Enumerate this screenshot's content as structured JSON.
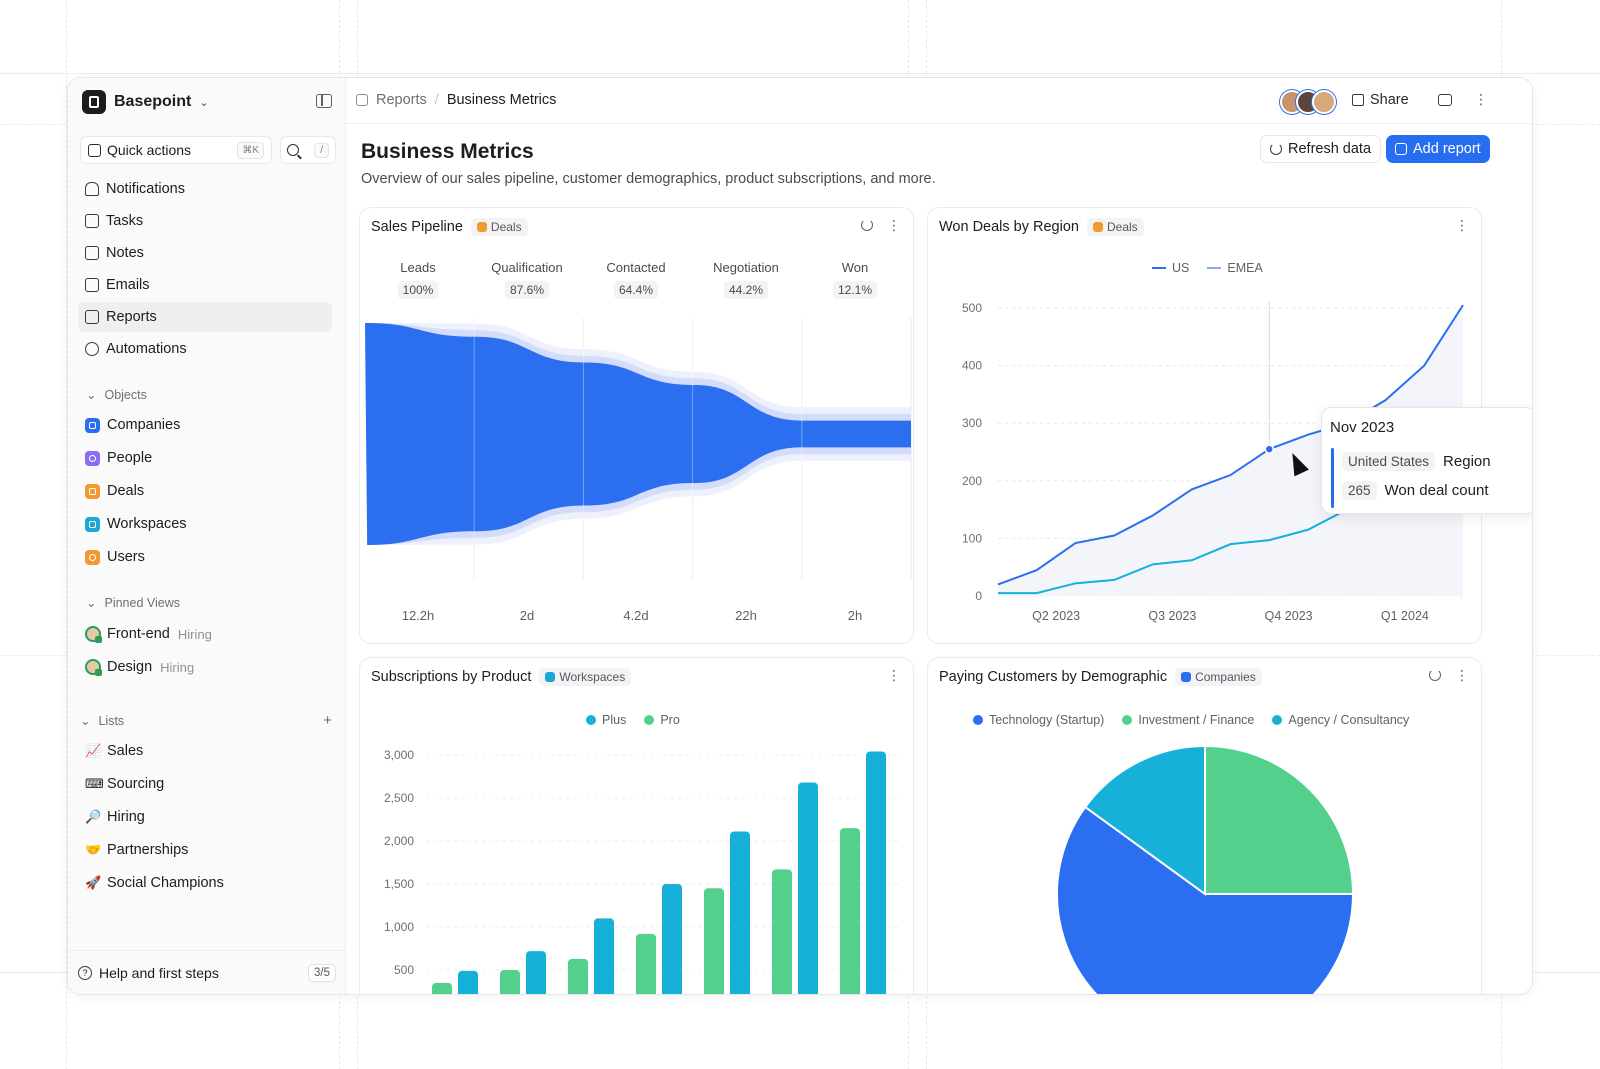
{
  "workspace": {
    "name": "Basepoint"
  },
  "quick_actions": {
    "label": "Quick actions",
    "shortcut": "⌘K",
    "search_shortcut": "/"
  },
  "nav": [
    {
      "label": "Notifications",
      "icon": "bell-icon"
    },
    {
      "label": "Tasks",
      "icon": "checkbox-icon"
    },
    {
      "label": "Notes",
      "icon": "note-icon"
    },
    {
      "label": "Emails",
      "icon": "mail-icon"
    },
    {
      "label": "Reports",
      "icon": "report-icon",
      "active": true
    },
    {
      "label": "Automations",
      "icon": "automation-icon"
    }
  ],
  "objects": {
    "heading": "Objects",
    "items": [
      {
        "label": "Companies",
        "color": "#2b6ff0"
      },
      {
        "label": "People",
        "color": "#8b6cf2"
      },
      {
        "label": "Deals",
        "color": "#f19a2f"
      },
      {
        "label": "Workspaces",
        "color": "#1ba8d6"
      },
      {
        "label": "Users",
        "color": "#f19a2f"
      }
    ]
  },
  "pinned_views": {
    "heading": "Pinned Views",
    "items": [
      {
        "label": "Front-end",
        "tag": "Hiring"
      },
      {
        "label": "Design",
        "tag": "Hiring"
      }
    ]
  },
  "lists": {
    "heading": "Lists",
    "add": "+",
    "items": [
      {
        "label": "Sales",
        "emoji": "📈"
      },
      {
        "label": "Sourcing",
        "emoji": "⌨"
      },
      {
        "label": "Hiring",
        "emoji": "🔎"
      },
      {
        "label": "Partnerships",
        "emoji": "🤝"
      },
      {
        "label": "Social Champions",
        "emoji": "🚀"
      }
    ]
  },
  "help": {
    "label": "Help and first steps",
    "progress": "3/5"
  },
  "breadcrumb": {
    "parent": "Reports",
    "current": "Business Metrics"
  },
  "header_actions": {
    "share": "Share"
  },
  "page": {
    "title": "Business Metrics",
    "subtitle": "Overview of our sales pipeline, customer demographics, product subscriptions, and more.",
    "refresh_label": "Refresh data",
    "add_report_label": "Add report"
  },
  "colors": {
    "blue": "#2b6ff0",
    "cyan": "#16b0d8",
    "green": "#53d18c",
    "orange": "#f19a2f"
  },
  "cards": {
    "pipeline": {
      "title": "Sales Pipeline",
      "tag": "Deals"
    },
    "won_deals": {
      "title": "Won Deals by Region",
      "tag": "Deals"
    },
    "subscriptions": {
      "title": "Subscriptions by Product",
      "tag": "Workspaces"
    },
    "customers": {
      "title": "Paying Customers by Demographic",
      "tag": "Companies"
    }
  },
  "chart_data": [
    {
      "type": "area",
      "title": "Sales Pipeline",
      "categories": [
        "Leads",
        "Qualification",
        "Contacted",
        "Negotiation",
        "Won"
      ],
      "percent_labels": [
        "100%",
        "87.6%",
        "64.4%",
        "44.2%",
        "12.1%"
      ],
      "values": [
        100,
        87.6,
        64.4,
        44.2,
        12.1
      ],
      "durations": [
        "12.2h",
        "2d",
        "4.2d",
        "22h",
        "2h"
      ]
    },
    {
      "type": "line",
      "title": "Won Deals by Region",
      "series": [
        {
          "name": "US",
          "values": [
            20,
            45,
            92,
            105,
            140,
            185,
            210,
            255,
            280,
            300,
            340,
            400,
            505
          ]
        },
        {
          "name": "EMEA",
          "values": [
            5,
            5,
            22,
            28,
            55,
            62,
            90,
            97,
            115,
            150,
            190,
            250,
            320
          ]
        }
      ],
      "x_tick_labels": [
        "Q2 2023",
        "Q3 2023",
        "Q4 2023",
        "Q1 2024"
      ],
      "y_ticks": [
        0,
        100,
        200,
        300,
        400,
        500
      ],
      "ylim": [
        0,
        520
      ],
      "legend": "top-center",
      "grid": true,
      "tooltip": {
        "title": "Nov 2023",
        "region_value": "United States",
        "region_label": "Region",
        "count_value": "265",
        "count_label": "Won deal count"
      }
    },
    {
      "type": "bar",
      "title": "Subscriptions by Product",
      "series": [
        {
          "name": "Plus",
          "values": [
            350,
            500,
            630,
            920,
            1450,
            1670,
            2150
          ]
        },
        {
          "name": "Pro",
          "values": [
            490,
            720,
            1100,
            1500,
            2110,
            2680,
            3040
          ]
        }
      ],
      "y_tick_labels": [
        "3,000",
        "2,500",
        "2,000",
        "1,500",
        "1,000",
        "500"
      ],
      "y_ticks": [
        3000,
        2500,
        2000,
        1500,
        1000,
        500
      ],
      "ylim": [
        0,
        3200
      ],
      "legend": "top-center",
      "grid": true
    },
    {
      "type": "pie",
      "title": "Paying Customers by Demographic",
      "series": [
        {
          "name": "Technology (Startup)",
          "value": 60
        },
        {
          "name": "Investment / Finance",
          "value": 25
        },
        {
          "name": "Agency / Consultancy",
          "value": 15
        }
      ],
      "legend": "top-center"
    }
  ]
}
